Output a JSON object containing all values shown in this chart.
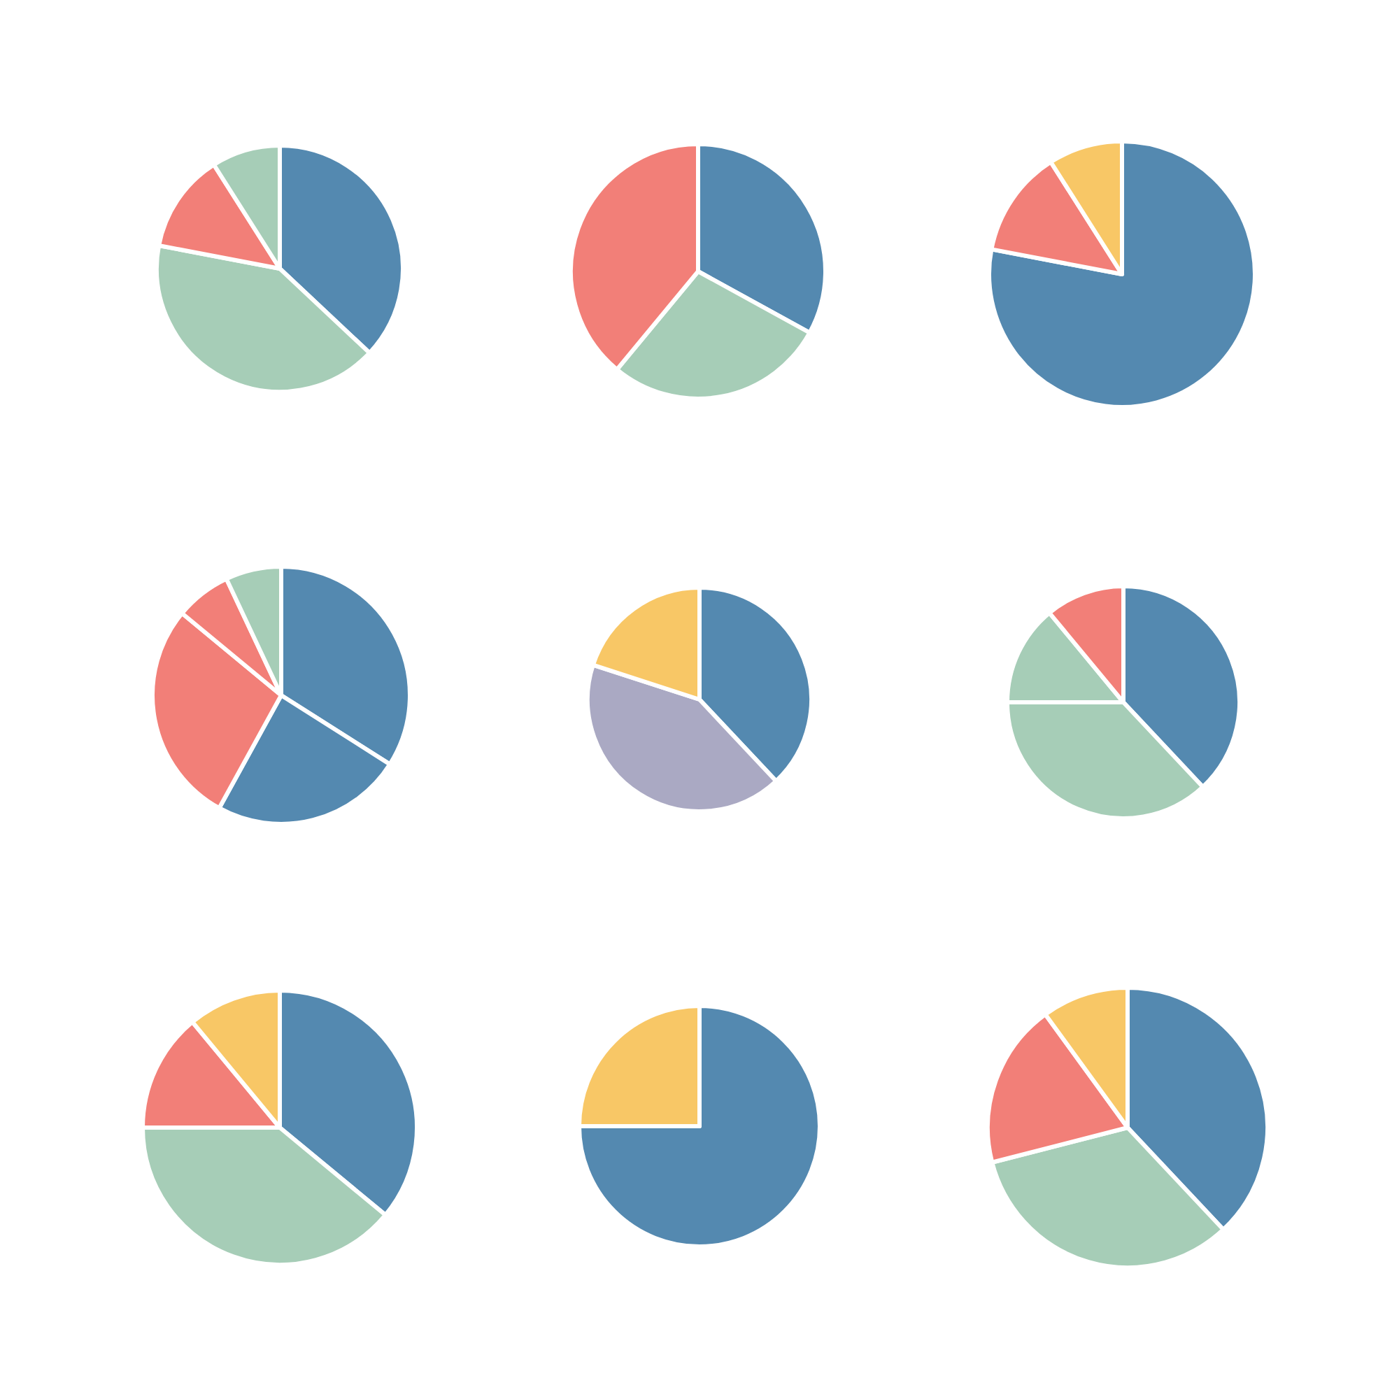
{
  "chart_data": [
    {
      "type": "pie",
      "categories": [
        null,
        null,
        null,
        null
      ],
      "values": [
        37,
        41,
        13,
        9
      ],
      "colors": [
        "#5489b0",
        "#a6cdb7",
        "#f27f78",
        "#a6cdb7"
      ]
    },
    {
      "type": "pie",
      "categories": [
        null,
        null,
        null
      ],
      "values": [
        33,
        28,
        39
      ],
      "colors": [
        "#5489b0",
        "#a6cdb7",
        "#f27f78"
      ]
    },
    {
      "type": "pie",
      "categories": [
        null,
        null,
        null
      ],
      "values": [
        78,
        13,
        9
      ],
      "colors": [
        "#5489b0",
        "#f27f78",
        "#f8c766"
      ]
    },
    {
      "type": "pie",
      "categories": [
        null,
        null,
        null,
        null,
        null
      ],
      "values": [
        34,
        24,
        28,
        7,
        7
      ],
      "colors": [
        "#5489b0",
        "#5489b0",
        "#f27f78",
        "#f27f78",
        "#a6cdb7"
      ]
    },
    {
      "type": "pie",
      "categories": [
        null,
        null,
        null
      ],
      "values": [
        38,
        42,
        20
      ],
      "colors": [
        "#5489b0",
        "#aaa9c3",
        "#f8c766"
      ]
    },
    {
      "type": "pie",
      "categories": [
        null,
        null,
        null,
        null
      ],
      "values": [
        38,
        37,
        14,
        11
      ],
      "colors": [
        "#5489b0",
        "#a6cdb7",
        "#a6cdb7",
        "#f27f78"
      ]
    },
    {
      "type": "pie",
      "categories": [
        null,
        null,
        null,
        null
      ],
      "values": [
        36,
        39,
        14,
        11
      ],
      "colors": [
        "#5489b0",
        "#a6cdb7",
        "#f27f78",
        "#f8c766"
      ]
    },
    {
      "type": "pie",
      "categories": [
        null,
        null
      ],
      "values": [
        75,
        25
      ],
      "colors": [
        "#5489b0",
        "#f8c766"
      ]
    },
    {
      "type": "pie",
      "categories": [
        null,
        null,
        null,
        null
      ],
      "values": [
        38,
        33,
        19,
        10
      ],
      "colors": [
        "#5489b0",
        "#a6cdb7",
        "#f27f78",
        "#f8c766"
      ]
    }
  ]
}
